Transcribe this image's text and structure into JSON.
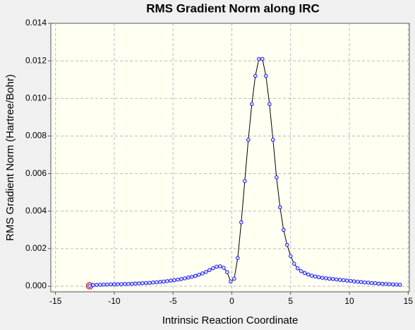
{
  "chart_data": {
    "type": "line",
    "title": "RMS Gradient Norm along IRC",
    "x_label": "Intrinsic Reaction Coordinate",
    "y_label": "RMS Gradient Norm (Hartree/Bohr)",
    "x": [
      -12.1,
      -11.8,
      -11.5,
      -11.2,
      -10.9,
      -10.6,
      -10.3,
      -10.0,
      -9.7,
      -9.4,
      -9.1,
      -8.8,
      -8.5,
      -8.2,
      -7.9,
      -7.6,
      -7.3,
      -7.0,
      -6.7,
      -6.4,
      -6.1,
      -5.8,
      -5.5,
      -5.2,
      -4.9,
      -4.6,
      -4.3,
      -4.0,
      -3.7,
      -3.4,
      -3.1,
      -2.8,
      -2.5,
      -2.2,
      -1.9,
      -1.6,
      -1.3,
      -1.0,
      -0.7,
      -0.4,
      -0.1,
      0.2,
      0.5,
      0.8,
      1.1,
      1.4,
      1.7,
      2.0,
      2.3,
      2.6,
      2.9,
      3.2,
      3.5,
      3.8,
      4.1,
      4.4,
      4.7,
      5.0,
      5.3,
      5.6,
      5.9,
      6.2,
      6.5,
      6.8,
      7.1,
      7.4,
      7.7,
      8.0,
      8.3,
      8.6,
      8.9,
      9.2,
      9.5,
      9.8,
      10.1,
      10.4,
      10.7,
      11.0,
      11.3,
      11.6,
      11.9,
      12.2,
      12.5,
      12.8,
      13.1,
      13.4,
      13.7,
      14.0,
      14.3
    ],
    "series": [
      {
        "color": "#0000ff",
        "line_color": "#000000",
        "values": [
          2e-05,
          6e-05,
          7e-05,
          8e-05,
          9e-05,
          9e-05,
          0.0001,
          0.0001,
          0.00011,
          0.00011,
          0.00012,
          0.00012,
          0.00013,
          0.00014,
          0.00015,
          0.00016,
          0.00017,
          0.00018,
          0.0002,
          0.00021,
          0.00023,
          0.00025,
          0.00027,
          0.0003,
          0.00032,
          0.00035,
          0.00038,
          0.00042,
          0.00046,
          0.0005,
          0.00055,
          0.00061,
          0.00068,
          0.00076,
          0.00086,
          0.00096,
          0.00104,
          0.00106,
          0.00098,
          0.00075,
          0.00025,
          0.0004,
          0.0015,
          0.0034,
          0.0056,
          0.0078,
          0.0097,
          0.0112,
          0.0121,
          0.0121,
          0.0112,
          0.0097,
          0.0078,
          0.0058,
          0.0042,
          0.003,
          0.0022,
          0.0016,
          0.0012,
          0.00095,
          0.0008,
          0.0007,
          0.00062,
          0.00056,
          0.00052,
          0.00048,
          0.00045,
          0.00042,
          0.0004,
          0.00038,
          0.00036,
          0.00034,
          0.00032,
          0.0003,
          0.00028,
          0.00026,
          0.00024,
          0.00022,
          0.0002,
          0.00019,
          0.00017,
          0.00016,
          0.00014,
          0.00013,
          0.00012,
          0.00011,
          0.0001,
          9e-05,
          8e-05
        ]
      }
    ],
    "selected_index": 0,
    "selected_color": "#cc0000",
    "xlim": [
      -15.4,
      15.1
    ],
    "ylim": [
      -0.0003,
      0.014
    ],
    "xticks": [
      -15,
      -10,
      -5,
      0,
      5,
      10,
      15
    ],
    "yticks": [
      {
        "value": 0,
        "label": "0.000"
      },
      {
        "value": 0.002,
        "label": "0.002"
      },
      {
        "value": 0.004,
        "label": "0.004"
      },
      {
        "value": 0.006,
        "label": "0.006"
      },
      {
        "value": 0.008,
        "label": "0.008"
      },
      {
        "value": 0.01,
        "label": "0.010"
      },
      {
        "value": 0.012,
        "label": "0.012"
      },
      {
        "value": 0.014,
        "label": "0.014"
      }
    ],
    "grid": true
  }
}
